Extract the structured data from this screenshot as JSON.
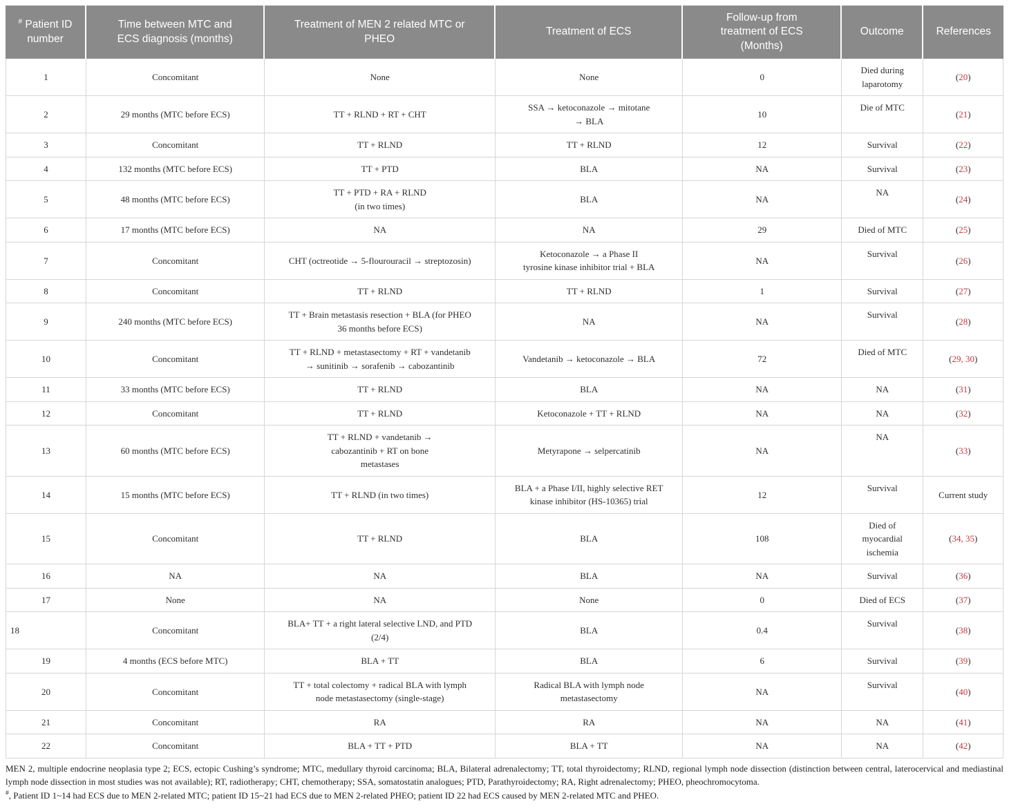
{
  "colors": {
    "header_bg": "#8a8a8a",
    "header_text": "#ffffff",
    "citation_red": "#c5383d",
    "grid_line": "#d6d6d6",
    "body_text": "#2e2e2e"
  },
  "table": {
    "columns": [
      {
        "sup": "#",
        "label": "Patient ID\nnumber"
      },
      {
        "label": "Time between MTC and\nECS diagnosis (months)"
      },
      {
        "label": "Treatment of MEN 2 related MTC or\nPHEO"
      },
      {
        "label": "Treatment of ECS"
      },
      {
        "label": "Follow-up from\ntreatment of ECS\n(Months)"
      },
      {
        "label": "Outcome"
      },
      {
        "label": "References"
      }
    ],
    "rows": [
      {
        "id": "1",
        "time": "Concomitant",
        "mtc_pheo_treatment": "None",
        "ecs_treatment": "None",
        "followup": "0",
        "outcome": "Died during\nlaparotomy",
        "reference": {
          "text": "(20)",
          "citation": true
        }
      },
      {
        "id": "2",
        "time": "29 months (MTC before ECS)",
        "mtc_pheo_treatment": "TT + RLND + RT + CHT",
        "ecs_treatment": "SSA → ketoconazole → mitotane\n→ BLA",
        "followup": "10",
        "outcome": "Die of MTC",
        "reference": {
          "text": "(21)",
          "citation": true
        }
      },
      {
        "id": "3",
        "time": "Concomitant",
        "mtc_pheo_treatment": "TT + RLND",
        "ecs_treatment": "TT + RLND",
        "followup": "12",
        "outcome": "Survival",
        "reference": {
          "text": "(22)",
          "citation": true
        }
      },
      {
        "id": "4",
        "time": "132 months (MTC before ECS)",
        "mtc_pheo_treatment": "TT + PTD",
        "ecs_treatment": "BLA",
        "followup": "NA",
        "outcome": "Survival",
        "reference": {
          "text": "(23)",
          "citation": true
        }
      },
      {
        "id": "5",
        "time": "48 months (MTC before ECS)",
        "mtc_pheo_treatment": "TT + PTD + RA + RLND\n(in two times)",
        "ecs_treatment": "BLA",
        "followup": "NA",
        "outcome": "NA",
        "reference": {
          "text": "(24)",
          "citation": true
        }
      },
      {
        "id": "6",
        "time": "17 months (MTC before ECS)",
        "mtc_pheo_treatment": "NA",
        "ecs_treatment": "NA",
        "followup": "29",
        "outcome": "Died of MTC",
        "reference": {
          "text": "(25)",
          "citation": true
        }
      },
      {
        "id": "7",
        "time": "Concomitant",
        "mtc_pheo_treatment": "CHT (octreotide → 5-flourouracil → streptozosin)",
        "ecs_treatment": "Ketoconazole → a Phase II\ntyrosine kinase inhibitor trial + BLA",
        "followup": "NA",
        "outcome": "Survival",
        "reference": {
          "text": "(26)",
          "citation": true
        }
      },
      {
        "id": "8",
        "time": "Concomitant",
        "mtc_pheo_treatment": "TT + RLND",
        "ecs_treatment": "TT + RLND",
        "followup": "1",
        "outcome": "Survival",
        "reference": {
          "text": "(27)",
          "citation": true
        }
      },
      {
        "id": "9",
        "time": "240 months (MTC before ECS)",
        "mtc_pheo_treatment": "TT + Brain metastasis resection + BLA (for PHEO\n36 months before ECS)",
        "ecs_treatment": "NA",
        "followup": "NA",
        "outcome": "Survival",
        "reference": {
          "text": "(28)",
          "citation": true
        }
      },
      {
        "id": "10",
        "time": "Concomitant",
        "mtc_pheo_treatment": "TT + RLND + metastasectomy + RT + vandetanib\n→ sunitinib → sorafenib → cabozantinib",
        "ecs_treatment": "Vandetanib → ketoconazole → BLA",
        "followup": "72",
        "outcome": "Died of MTC",
        "reference": {
          "text": "(29, 30)",
          "citation": true
        }
      },
      {
        "id": "11",
        "time": "33 months (MTC before ECS)",
        "mtc_pheo_treatment": "TT + RLND",
        "ecs_treatment": "BLA",
        "followup": "NA",
        "outcome": "NA",
        "reference": {
          "text": "(31)",
          "citation": true
        }
      },
      {
        "id": "12",
        "time": "Concomitant",
        "mtc_pheo_treatment": "TT + RLND",
        "ecs_treatment": "Ketoconazole + TT + RLND",
        "followup": "NA",
        "outcome": "NA",
        "reference": {
          "text": "(32)",
          "citation": true
        }
      },
      {
        "id": "13",
        "time": "60 months (MTC before ECS)",
        "mtc_pheo_treatment": "TT + RLND + vandetanib →\ncabozantinib + RT on bone\nmetastases",
        "ecs_treatment": "Metyrapone → selpercatinib",
        "followup": "NA",
        "outcome": "NA",
        "reference": {
          "text": "(33)",
          "citation": true
        }
      },
      {
        "id": "14",
        "time": "15 months (MTC before ECS)",
        "mtc_pheo_treatment": "TT + RLND (in two times)",
        "ecs_treatment": "BLA + a Phase I/II, highly selective RET\nkinase inhibitor (HS-10365) trial",
        "followup": "12",
        "outcome": "Survival",
        "reference": {
          "text": "Current study",
          "citation": false
        }
      },
      {
        "id": "15",
        "time": "Concomitant",
        "mtc_pheo_treatment": "TT + RLND",
        "ecs_treatment": "BLA",
        "followup": "108",
        "outcome": "Died of\nmyocardial\nischemia",
        "reference": {
          "text": "(34, 35)",
          "citation": true
        }
      },
      {
        "id": "16",
        "time": "NA",
        "mtc_pheo_treatment": "NA",
        "ecs_treatment": "BLA",
        "followup": "NA",
        "outcome": "Survival",
        "reference": {
          "text": "(36)",
          "citation": true
        }
      },
      {
        "id": "17",
        "time": "None",
        "mtc_pheo_treatment": "NA",
        "ecs_treatment": "None",
        "followup": "0",
        "outcome": "Died of ECS",
        "reference": {
          "text": "(37)",
          "citation": true
        }
      },
      {
        "id": "18",
        "id_left": true,
        "time": "Concomitant",
        "mtc_pheo_treatment": "BLA+ TT + a right lateral selective LND, and PTD\n(2/4)",
        "ecs_treatment": "BLA",
        "followup": "0.4",
        "outcome": "Survival",
        "reference": {
          "text": "(38)",
          "citation": true
        }
      },
      {
        "id": "19",
        "time": "4 months (ECS before MTC)",
        "mtc_pheo_treatment": "BLA + TT",
        "ecs_treatment": "BLA",
        "followup": "6",
        "outcome": "Survival",
        "reference": {
          "text": "(39)",
          "citation": true
        }
      },
      {
        "id": "20",
        "time": "Concomitant",
        "mtc_pheo_treatment": "TT + total colectomy + radical BLA with lymph\nnode metastasectomy (single-stage)",
        "ecs_treatment": "Radical BLA with lymph node\nmetastasectomy",
        "followup": "NA",
        "outcome": "Survival",
        "reference": {
          "text": "(40)",
          "citation": true
        }
      },
      {
        "id": "21",
        "time": "Concomitant",
        "mtc_pheo_treatment": "RA",
        "ecs_treatment": "RA",
        "followup": "NA",
        "outcome": "NA",
        "reference": {
          "text": "(41)",
          "citation": true
        }
      },
      {
        "id": "22",
        "time": "Concomitant",
        "mtc_pheo_treatment": "BLA + TT + PTD",
        "ecs_treatment": "BLA + TT",
        "followup": "NA",
        "outcome": "NA",
        "reference": {
          "text": "(42)",
          "citation": true
        }
      }
    ]
  },
  "footnotes": {
    "abbreviations": "MEN 2, multiple endocrine neoplasia type 2; ECS, ectopic Cushing’s syndrome; MTC, medullary thyroid carcinoma; BLA, Bilateral adrenalectomy; TT, total thyroidectomy; RLND, regional lymph node dissection (distinction between central, laterocervical and mediastinal lymph node dissection in most studies was not available); RT, radiotherapy; CHT, chemotherapy; SSA, somatostatin analogues; PTD, Parathyroidectomy; RA, Right adrenalectomy; PHEO, pheochromocytoma.",
    "hash_sup": "#",
    "hash_note": ", Patient ID 1~14 had ECS due to MEN 2-related MTC; patient ID 15~21 had ECS due to MEN 2-related PHEO; patient ID 22 had ECS caused by MEN 2-related MTC and PHEO."
  }
}
